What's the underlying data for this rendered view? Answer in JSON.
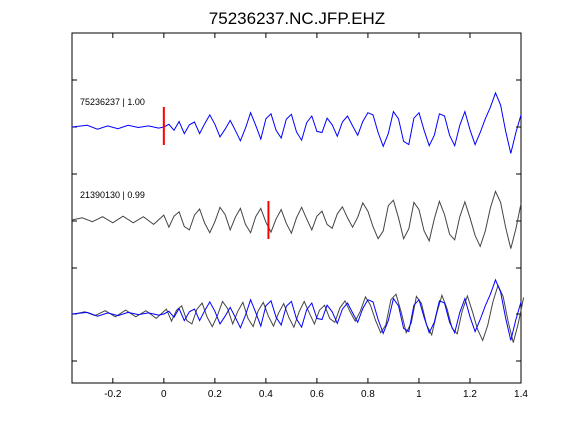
{
  "chart_data": {
    "type": "line",
    "title": "75236237.NC.JFP.EHZ",
    "xlabel": "",
    "ylabel": "",
    "xlim": [
      -0.36,
      1.4
    ],
    "x_ticks": [
      -0.2,
      0,
      0.2,
      0.4,
      0.6,
      0.8,
      1,
      1.2,
      1.4
    ],
    "x_tick_labels": [
      "-0.2",
      "0",
      "0.2",
      "0.4",
      "0.6",
      "0.8",
      "1",
      "1.2",
      "1.4"
    ],
    "y_tick_count": 7,
    "grid": false,
    "traces": [
      {
        "label": "75236237 | 1.00",
        "color": "#0000ff",
        "pick_time": 0.0,
        "pick_color": "#ff0000",
        "points": [
          [
            -0.36,
            0
          ],
          [
            -0.3,
            0.3
          ],
          [
            -0.26,
            -0.4
          ],
          [
            -0.22,
            0.2
          ],
          [
            -0.18,
            -0.3
          ],
          [
            -0.14,
            0.3
          ],
          [
            -0.1,
            -0.1
          ],
          [
            -0.06,
            0.2
          ],
          [
            -0.02,
            -0.2
          ],
          [
            0,
            0
          ],
          [
            0.02,
            0.5
          ],
          [
            0.04,
            -0.6
          ],
          [
            0.06,
            1.0
          ],
          [
            0.08,
            -1.2
          ],
          [
            0.1,
            0.4
          ],
          [
            0.12,
            0.9
          ],
          [
            0.14,
            -1.2
          ],
          [
            0.16,
            0.6
          ],
          [
            0.18,
            2.2
          ],
          [
            0.2,
            0.5
          ],
          [
            0.22,
            -1.8
          ],
          [
            0.24,
            -0.4
          ],
          [
            0.26,
            1.2
          ],
          [
            0.28,
            -0.6
          ],
          [
            0.3,
            -2.5
          ],
          [
            0.32,
            -0.2
          ],
          [
            0.34,
            2.6
          ],
          [
            0.36,
            0.3
          ],
          [
            0.38,
            -2.2
          ],
          [
            0.4,
            1.5
          ],
          [
            0.42,
            2.4
          ],
          [
            0.44,
            -0.6
          ],
          [
            0.46,
            -2.0
          ],
          [
            0.48,
            1.4
          ],
          [
            0.5,
            2.3
          ],
          [
            0.52,
            -0.9
          ],
          [
            0.54,
            -2.4
          ],
          [
            0.56,
            0.8
          ],
          [
            0.58,
            2.0
          ],
          [
            0.6,
            -0.8
          ],
          [
            0.62,
            -1.0
          ],
          [
            0.64,
            1.6
          ],
          [
            0.66,
            0.4
          ],
          [
            0.68,
            -1.7
          ],
          [
            0.7,
            0.9
          ],
          [
            0.72,
            2.0
          ],
          [
            0.74,
            0.2
          ],
          [
            0.76,
            -1.5
          ],
          [
            0.78,
            1.0
          ],
          [
            0.8,
            2.6
          ],
          [
            0.82,
            2.2
          ],
          [
            0.84,
            -1.0
          ],
          [
            0.86,
            -3.5
          ],
          [
            0.88,
            -1.2
          ],
          [
            0.9,
            2.8
          ],
          [
            0.92,
            1.5
          ],
          [
            0.94,
            -2.6
          ],
          [
            0.96,
            -3.2
          ],
          [
            0.98,
            1.6
          ],
          [
            1.0,
            2.6
          ],
          [
            1.02,
            -0.6
          ],
          [
            1.04,
            -3.4
          ],
          [
            1.06,
            -1.5
          ],
          [
            1.08,
            2.4
          ],
          [
            1.1,
            2.0
          ],
          [
            1.12,
            -1.5
          ],
          [
            1.14,
            -3.4
          ],
          [
            1.16,
            0.3
          ],
          [
            1.18,
            2.8
          ],
          [
            1.2,
            -0.5
          ],
          [
            1.22,
            -3.2
          ],
          [
            1.24,
            -1.0
          ],
          [
            1.26,
            1.5
          ],
          [
            1.28,
            3.6
          ],
          [
            1.3,
            6.2
          ],
          [
            1.32,
            4.0
          ],
          [
            1.34,
            -0.8
          ],
          [
            1.36,
            -4.8
          ],
          [
            1.38,
            -1.0
          ],
          [
            1.4,
            2.2
          ]
        ]
      },
      {
        "label": "21390130 | 0.99",
        "color": "#444444",
        "pick_time": 0.41,
        "pick_color": "#ff0000",
        "points": [
          [
            -0.36,
            0
          ],
          [
            -0.32,
            0.4
          ],
          [
            -0.28,
            -0.3
          ],
          [
            -0.24,
            0.6
          ],
          [
            -0.2,
            -0.5
          ],
          [
            -0.16,
            0.7
          ],
          [
            -0.12,
            -0.5
          ],
          [
            -0.08,
            0.6
          ],
          [
            -0.04,
            -0.8
          ],
          [
            0,
            0.9
          ],
          [
            0.02,
            -1.3
          ],
          [
            0.04,
            0.7
          ],
          [
            0.06,
            1.5
          ],
          [
            0.08,
            -1.2
          ],
          [
            0.1,
            -1.8
          ],
          [
            0.12,
            0.9
          ],
          [
            0.14,
            2.0
          ],
          [
            0.16,
            -0.6
          ],
          [
            0.18,
            -2.3
          ],
          [
            0.2,
            -0.3
          ],
          [
            0.22,
            2.3
          ],
          [
            0.24,
            1.0
          ],
          [
            0.26,
            -1.8
          ],
          [
            0.28,
            0.5
          ],
          [
            0.3,
            2.1
          ],
          [
            0.32,
            -0.8
          ],
          [
            0.34,
            -2.3
          ],
          [
            0.36,
            0.6
          ],
          [
            0.38,
            2.1
          ],
          [
            0.4,
            -0.4
          ],
          [
            0.42,
            -2.2
          ],
          [
            0.44,
            0.2
          ],
          [
            0.46,
            1.9
          ],
          [
            0.48,
            -0.6
          ],
          [
            0.5,
            -2.4
          ],
          [
            0.52,
            0.4
          ],
          [
            0.54,
            2.3
          ],
          [
            0.56,
            0.2
          ],
          [
            0.58,
            -1.8
          ],
          [
            0.6,
            0.7
          ],
          [
            0.62,
            1.6
          ],
          [
            0.64,
            -0.8
          ],
          [
            0.66,
            -1.5
          ],
          [
            0.68,
            1.1
          ],
          [
            0.7,
            2.4
          ],
          [
            0.72,
            0.4
          ],
          [
            0.74,
            -1.3
          ],
          [
            0.76,
            0.5
          ],
          [
            0.78,
            3.1
          ],
          [
            0.8,
            1.6
          ],
          [
            0.82,
            -1.2
          ],
          [
            0.84,
            -3.4
          ],
          [
            0.86,
            -2.0
          ],
          [
            0.88,
            2.6
          ],
          [
            0.9,
            3.6
          ],
          [
            0.92,
            0.4
          ],
          [
            0.94,
            -3.4
          ],
          [
            0.96,
            -1.6
          ],
          [
            0.98,
            3.2
          ],
          [
            1.0,
            1.9
          ],
          [
            1.02,
            -2.0
          ],
          [
            1.04,
            -3.8
          ],
          [
            1.06,
            0.2
          ],
          [
            1.08,
            3.4
          ],
          [
            1.1,
            1.0
          ],
          [
            1.12,
            -2.6
          ],
          [
            1.14,
            -3.6
          ],
          [
            1.16,
            0.6
          ],
          [
            1.18,
            3.3
          ],
          [
            1.2,
            0.4
          ],
          [
            1.22,
            -2.8
          ],
          [
            1.24,
            -4.8
          ],
          [
            1.26,
            -2.0
          ],
          [
            1.28,
            2.2
          ],
          [
            1.3,
            5.2
          ],
          [
            1.32,
            3.2
          ],
          [
            1.34,
            -1.4
          ],
          [
            1.36,
            -5.2
          ],
          [
            1.38,
            -1.6
          ],
          [
            1.4,
            3.0
          ]
        ]
      }
    ]
  }
}
